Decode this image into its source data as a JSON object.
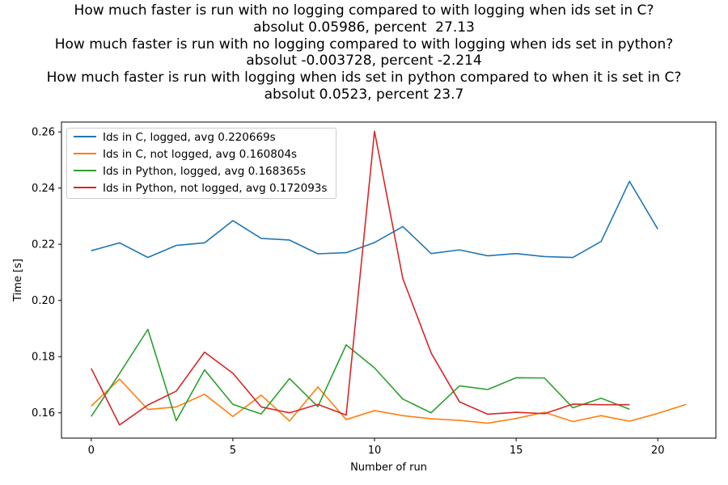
{
  "chart_data": {
    "type": "line",
    "title_lines": [
      "How much faster is run with no logging compared to with logging when ids set in C?",
      "absolut 0.05986, percent  27.13",
      "How much faster is run with no logging compared to with logging when ids set in python?",
      "absolut -0.003728, percent -2.214",
      "How much faster is run with logging when ids set in python compared to when it is set in C?",
      "absolut 0.0523, percent 23.7"
    ],
    "xlabel": "Number of run",
    "ylabel": "Time [s]",
    "xlim": [
      -1.05,
      22.05
    ],
    "ylim": [
      0.151,
      0.2635
    ],
    "xticks": [
      0,
      5,
      10,
      15,
      20
    ],
    "yticks": [
      0.16,
      0.18,
      0.2,
      0.22,
      0.24,
      0.26
    ],
    "ytick_labels": [
      "0.16",
      "0.18",
      "0.20",
      "0.22",
      "0.24",
      "0.26"
    ],
    "grid": false,
    "legend_position": "upper-left",
    "series": [
      {
        "name": "Ids in C, logged, avg 0.220669s",
        "color": "#1f77b4",
        "x": [
          0,
          1,
          2,
          3,
          4,
          5,
          6,
          7,
          8,
          9,
          10,
          11,
          12,
          13,
          14,
          15,
          16,
          17,
          18,
          19,
          20
        ],
        "values": [
          0.2177,
          0.2205,
          0.2153,
          0.2196,
          0.2205,
          0.2284,
          0.2221,
          0.2215,
          0.2166,
          0.217,
          0.2206,
          0.2263,
          0.2167,
          0.218,
          0.2159,
          0.2167,
          0.2156,
          0.2153,
          0.221,
          0.2424,
          0.2254
        ]
      },
      {
        "name": "Ids in C, not logged, avg 0.160804s",
        "color": "#ff7f0e",
        "x": [
          0,
          1,
          2,
          3,
          4,
          5,
          6,
          7,
          8,
          9,
          10,
          11,
          12,
          13,
          14,
          15,
          16,
          17,
          18,
          19,
          20,
          21
        ],
        "values": [
          0.1624,
          0.172,
          0.1612,
          0.1621,
          0.1666,
          0.1587,
          0.1663,
          0.1571,
          0.1692,
          0.1576,
          0.1608,
          0.159,
          0.1579,
          0.1573,
          0.1563,
          0.158,
          0.1602,
          0.1569,
          0.159,
          0.157,
          0.1598,
          0.163
        ]
      },
      {
        "name": "Ids in Python, logged, avg 0.168365s",
        "color": "#2ca02c",
        "x": [
          0,
          1,
          2,
          3,
          4,
          5,
          6,
          7,
          8,
          9,
          10,
          11,
          12,
          13,
          14,
          15,
          16,
          17,
          18,
          19
        ],
        "values": [
          0.1587,
          0.174,
          0.1897,
          0.1572,
          0.1753,
          0.163,
          0.1596,
          0.1722,
          0.1622,
          0.1842,
          0.176,
          0.1649,
          0.16,
          0.1696,
          0.1683,
          0.1725,
          0.1724,
          0.1618,
          0.1652,
          0.1613
        ]
      },
      {
        "name": "Ids in Python, not logged, avg 0.172093s",
        "color": "#d62728",
        "x": [
          0,
          1,
          2,
          3,
          4,
          5,
          6,
          7,
          8,
          9,
          10,
          11,
          12,
          13,
          14,
          15,
          16,
          17,
          18,
          19
        ],
        "values": [
          0.1758,
          0.1557,
          0.1628,
          0.1677,
          0.1816,
          0.1741,
          0.1621,
          0.16,
          0.163,
          0.1592,
          0.2602,
          0.2078,
          0.1813,
          0.1639,
          0.1595,
          0.1602,
          0.1597,
          0.1631,
          0.1629,
          0.1629
        ]
      }
    ]
  }
}
